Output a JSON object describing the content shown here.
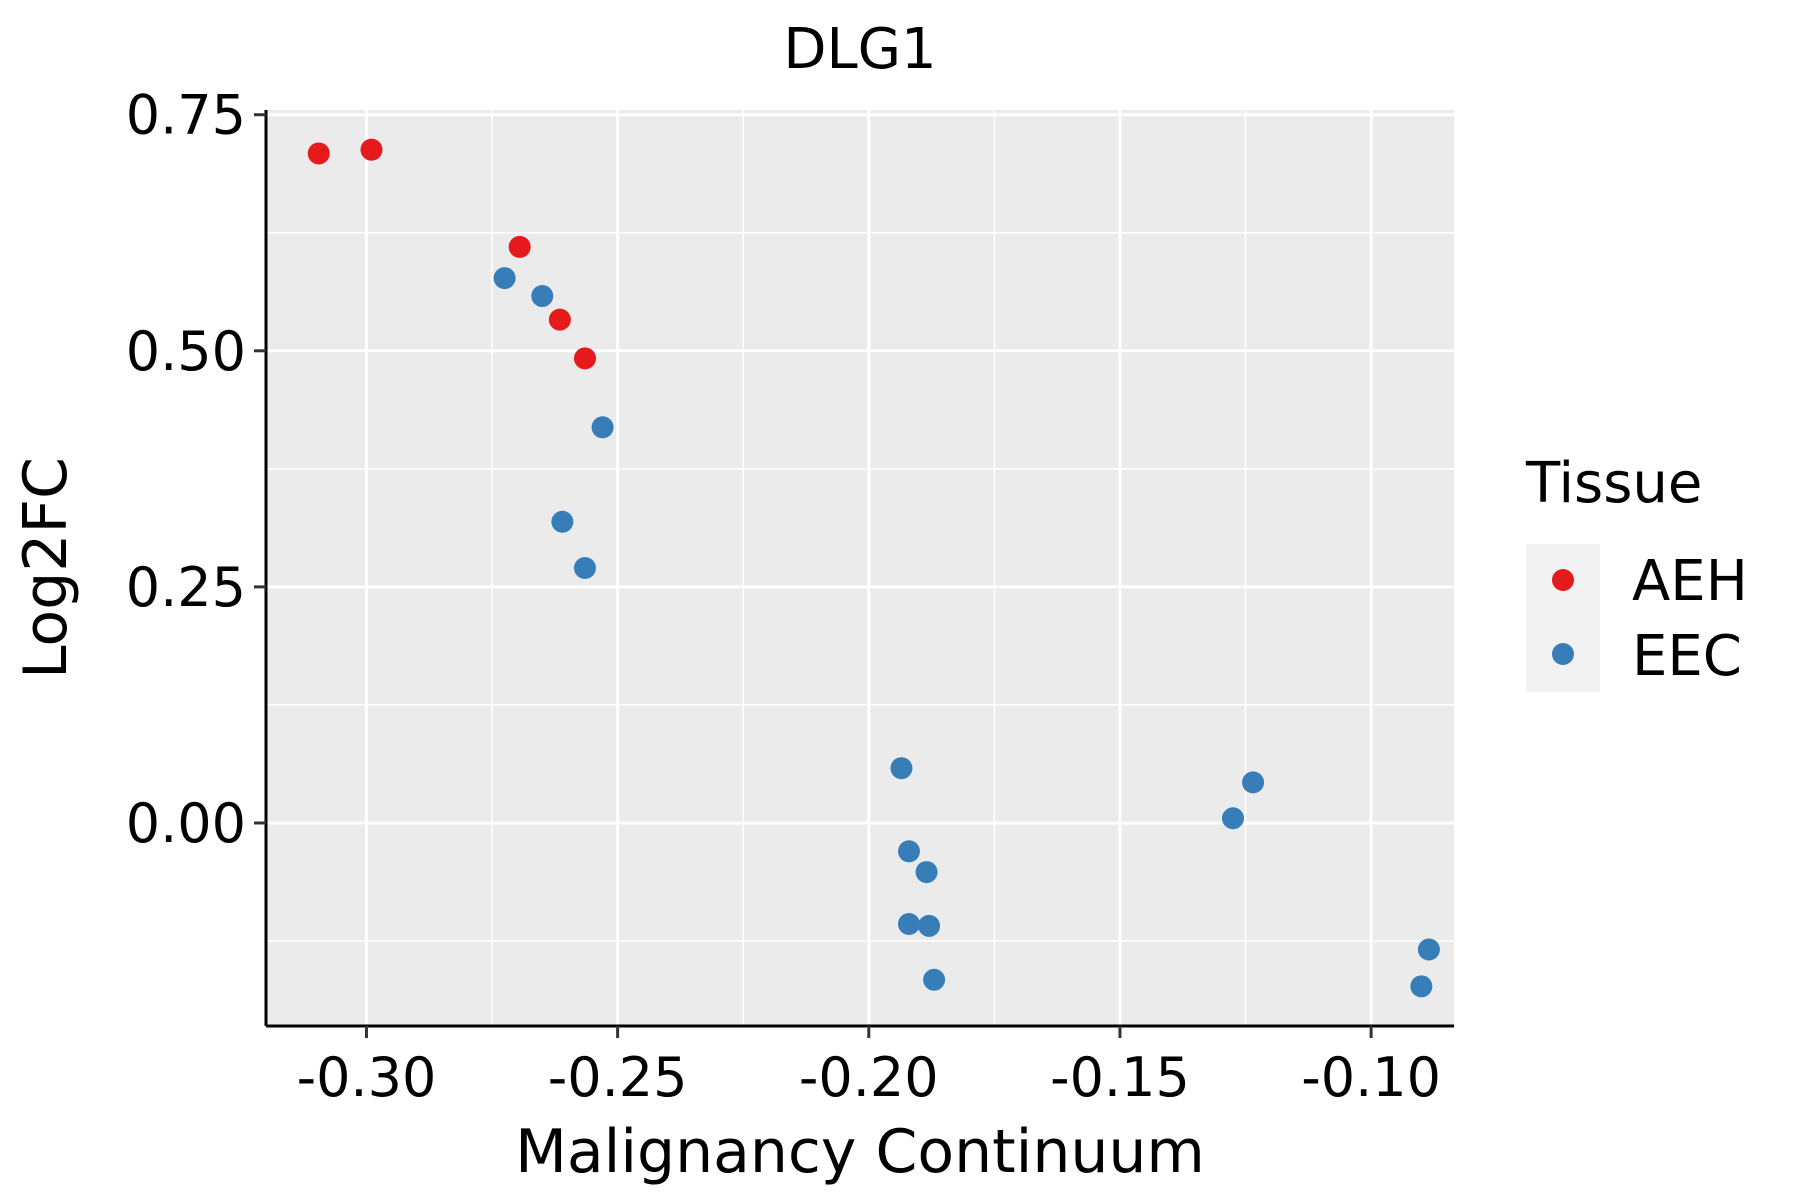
{
  "chart_data": {
    "type": "scatter",
    "title": "DLG1",
    "xlabel": "Malignancy Continuum",
    "ylabel": "Log2FC",
    "xlim": [
      -0.32,
      -0.0835
    ],
    "ylim": [
      -0.215,
      0.755
    ],
    "x_ticks": [
      -0.3,
      -0.25,
      -0.2,
      -0.15,
      -0.1
    ],
    "x_tick_labels": [
      "-0.30",
      "-0.25",
      "-0.20",
      "-0.15",
      "-0.10"
    ],
    "y_ticks": [
      0.0,
      0.25,
      0.5,
      0.75
    ],
    "y_tick_labels": [
      "0.00",
      "0.25",
      "0.50",
      "0.75"
    ],
    "grid": true,
    "legend": {
      "title": "Tissue",
      "position": "right",
      "entries": [
        {
          "name": "AEH",
          "color": "#E41A1C"
        },
        {
          "name": "EEC",
          "color": "#377EB8"
        }
      ]
    },
    "series": [
      {
        "name": "AEH",
        "color": "#E41A1C",
        "points": [
          {
            "x": -0.3095,
            "y": 0.709
          },
          {
            "x": -0.299,
            "y": 0.713
          },
          {
            "x": -0.2695,
            "y": 0.61
          },
          {
            "x": -0.2615,
            "y": 0.533
          },
          {
            "x": -0.2565,
            "y": 0.492
          }
        ]
      },
      {
        "name": "EEC",
        "color": "#377EB8",
        "points": [
          {
            "x": -0.2725,
            "y": 0.577
          },
          {
            "x": -0.265,
            "y": 0.558
          },
          {
            "x": -0.253,
            "y": 0.419
          },
          {
            "x": -0.261,
            "y": 0.319
          },
          {
            "x": -0.2565,
            "y": 0.27
          },
          {
            "x": -0.1935,
            "y": 0.058
          },
          {
            "x": -0.192,
            "y": -0.03
          },
          {
            "x": -0.1885,
            "y": -0.052
          },
          {
            "x": -0.192,
            "y": -0.107
          },
          {
            "x": -0.188,
            "y": -0.109
          },
          {
            "x": -0.187,
            "y": -0.166
          },
          {
            "x": -0.1235,
            "y": 0.043
          },
          {
            "x": -0.1275,
            "y": 0.005
          },
          {
            "x": -0.0885,
            "y": -0.134
          },
          {
            "x": -0.09,
            "y": -0.173
          }
        ]
      }
    ]
  }
}
